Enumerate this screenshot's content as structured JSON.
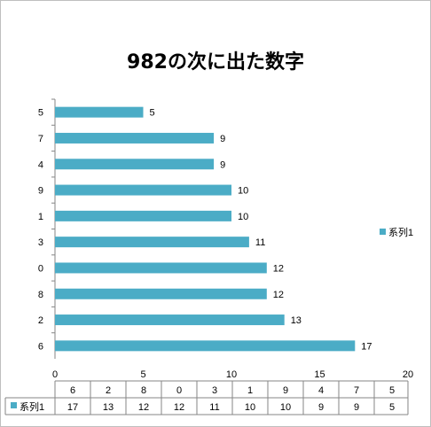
{
  "chart_data": {
    "type": "bar",
    "orientation": "horizontal",
    "title": "982の次に出た数字",
    "categories": [
      "6",
      "2",
      "8",
      "0",
      "3",
      "1",
      "9",
      "4",
      "7",
      "5"
    ],
    "series": [
      {
        "name": "系列1",
        "values": [
          17,
          13,
          12,
          12,
          11,
          10,
          10,
          9,
          9,
          5
        ]
      }
    ],
    "xlim": [
      0,
      20
    ],
    "x_ticks": [
      "0",
      "5",
      "10",
      "15",
      "20"
    ],
    "data_labels": true,
    "grid": false,
    "legend_position": "right",
    "data_table": true,
    "bar_color": "#4bacc6"
  }
}
